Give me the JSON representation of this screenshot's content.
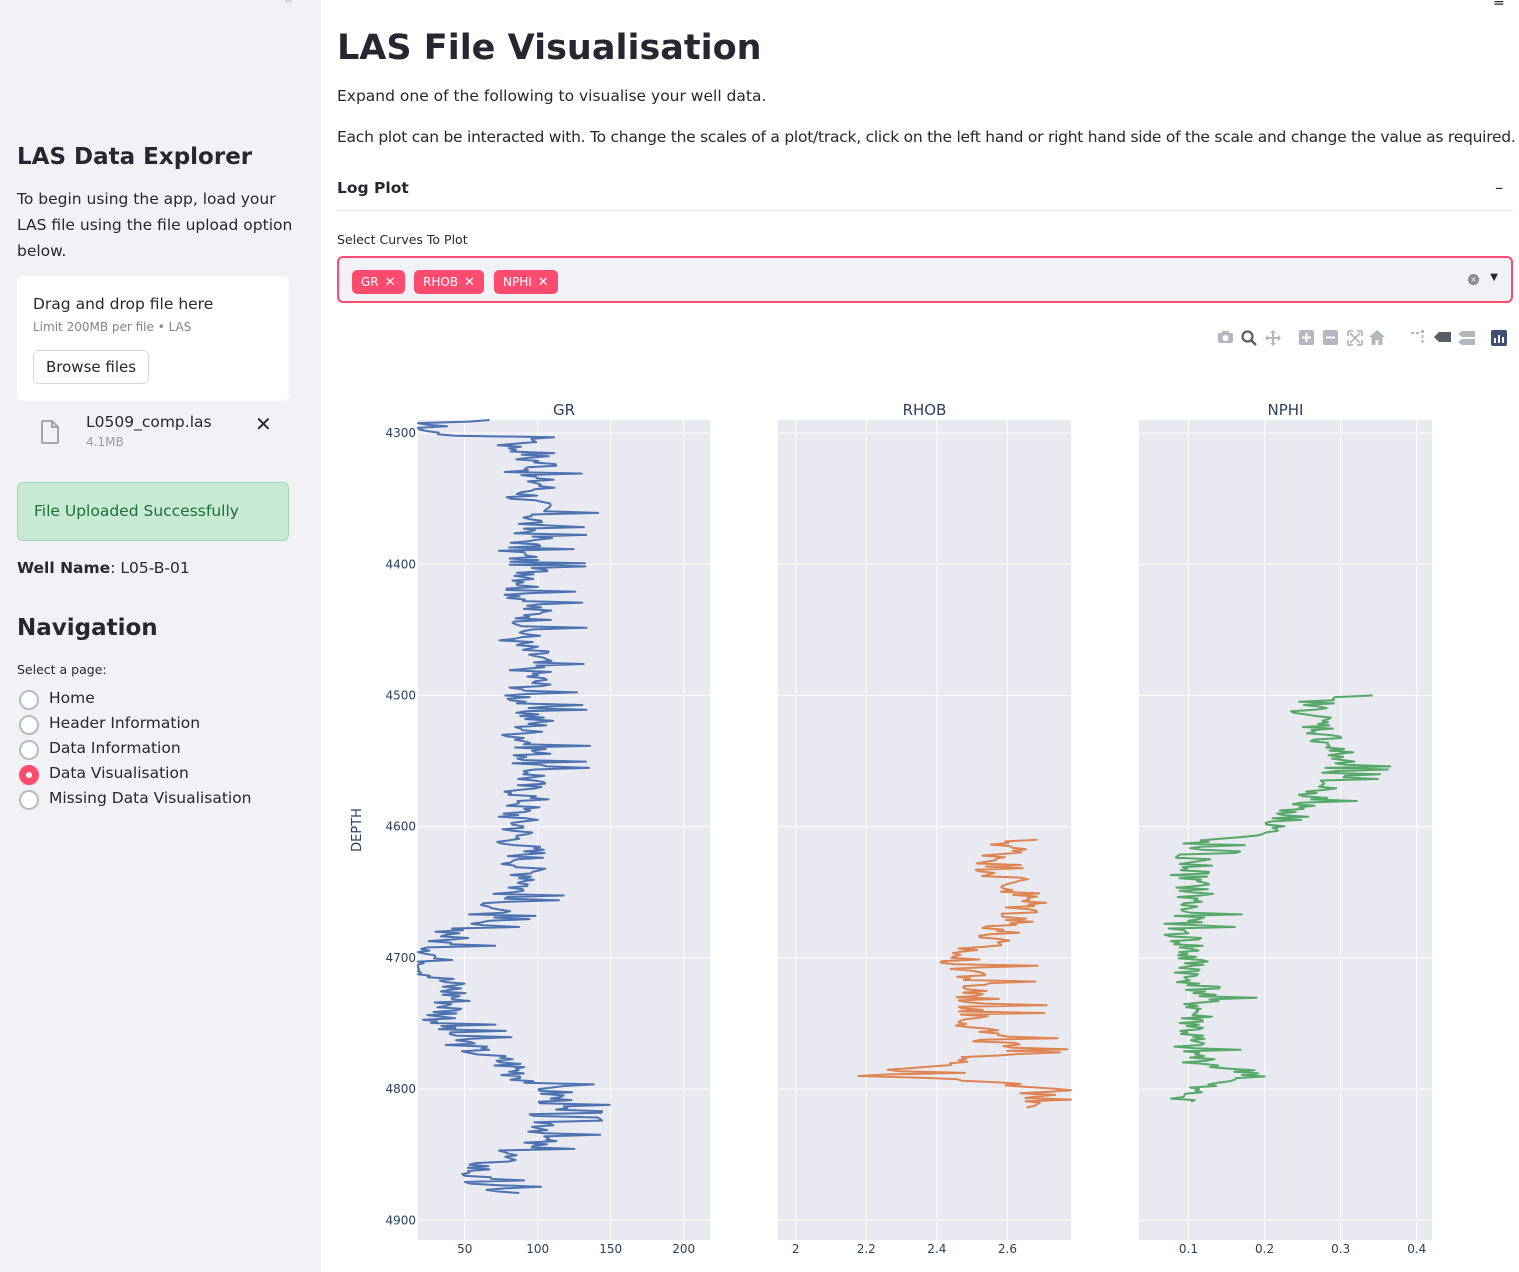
{
  "sidebar": {
    "close_icon": "«",
    "title": "LAS Data Explorer",
    "intro": "To begin using the app, load your LAS file using the file upload option below.",
    "uploader": {
      "drag_text": "Drag and drop file here",
      "limit_text": "Limit 200MB per file • LAS",
      "browse_label": "Browse files"
    },
    "file": {
      "name": "L0509_comp.las",
      "size": "4.1MB",
      "remove": "✕"
    },
    "success_message": "File Uploaded Successfully",
    "well_label": "Well Name",
    "well_value": ": L05-B-01",
    "nav_title": "Navigation",
    "nav_label": "Select a page:",
    "nav_items": [
      {
        "label": "Home",
        "checked": false
      },
      {
        "label": "Header Information",
        "checked": false
      },
      {
        "label": "Data Information",
        "checked": false
      },
      {
        "label": "Data Visualisation",
        "checked": true
      },
      {
        "label": "Missing Data Visualisation",
        "checked": false
      }
    ]
  },
  "main": {
    "menu_icon": "≡",
    "title": "LAS File Visualisation",
    "p1": "Expand one of the following to visualise your well data.",
    "p2": "Each plot can be interacted with. To change the scales of a plot/track, click on the left hand or right hand side of the scale and change the value as required.",
    "expander_title": "Log Plot",
    "expander_toggle": "–",
    "multiselect_label": "Select Curves To Plot",
    "selected_curves": [
      "GR",
      "RHOB",
      "NPHI"
    ],
    "remove_glyph": "✕",
    "clear_glyph": "×",
    "caret_glyph": "▼"
  },
  "modebar_icons": [
    "camera-icon",
    "zoom-icon",
    "pan-icon",
    "zoom-in-icon",
    "zoom-out-icon",
    "autoscale-icon",
    "reset-axes-icon",
    "spike-lines-icon",
    "hover-closest-icon",
    "hover-compare-icon",
    "plotly-logo-icon"
  ],
  "chart_data": {
    "type": "line",
    "y_label": "DEPTH",
    "y_range": [
      4290,
      4915
    ],
    "y_reversed": true,
    "y_ticks": [
      4300,
      4400,
      4500,
      4600,
      4700,
      4800,
      4900
    ],
    "background": "#e9e9f1",
    "grid": true,
    "tracks": [
      {
        "name": "GR",
        "color": "#4c72b0",
        "x_range": [
          18,
          218
        ],
        "x_ticks": [
          50,
          100,
          150,
          200
        ],
        "depth_start": 4290,
        "depth_end": 4880,
        "points": [
          [
            4290,
            55
          ],
          [
            4292,
            30
          ],
          [
            4295,
            25
          ],
          [
            4298,
            22
          ],
          [
            4300,
            30
          ],
          [
            4302,
            55
          ],
          [
            4305,
            110
          ],
          [
            4310,
            80
          ],
          [
            4315,
            100
          ],
          [
            4320,
            95
          ],
          [
            4325,
            110
          ],
          [
            4330,
            90
          ],
          [
            4340,
            105
          ],
          [
            4350,
            90
          ],
          [
            4360,
            105
          ],
          [
            4370,
            95
          ],
          [
            4380,
            100
          ],
          [
            4390,
            85
          ],
          [
            4400,
            95
          ],
          [
            4410,
            100
          ],
          [
            4420,
            90
          ],
          [
            4430,
            95
          ],
          [
            4440,
            100
          ],
          [
            4450,
            95
          ],
          [
            4460,
            85
          ],
          [
            4470,
            100
          ],
          [
            4480,
            95
          ],
          [
            4490,
            100
          ],
          [
            4500,
            90
          ],
          [
            4510,
            95
          ],
          [
            4520,
            100
          ],
          [
            4530,
            90
          ],
          [
            4540,
            100
          ],
          [
            4550,
            95
          ],
          [
            4560,
            100
          ],
          [
            4570,
            90
          ],
          [
            4580,
            95
          ],
          [
            4590,
            85
          ],
          [
            4600,
            90
          ],
          [
            4610,
            85
          ],
          [
            4620,
            95
          ],
          [
            4630,
            90
          ],
          [
            4640,
            100
          ],
          [
            4650,
            85
          ],
          [
            4660,
            75
          ],
          [
            4670,
            60
          ],
          [
            4680,
            45
          ],
          [
            4690,
            35
          ],
          [
            4700,
            30
          ],
          [
            4710,
            25
          ],
          [
            4720,
            40
          ],
          [
            4730,
            45
          ],
          [
            4740,
            40
          ],
          [
            4750,
            35
          ],
          [
            4760,
            45
          ],
          [
            4770,
            55
          ],
          [
            4780,
            80
          ],
          [
            4790,
            90
          ],
          [
            4800,
            110
          ],
          [
            4810,
            115
          ],
          [
            4820,
            105
          ],
          [
            4830,
            110
          ],
          [
            4840,
            100
          ],
          [
            4850,
            80
          ],
          [
            4860,
            60
          ],
          [
            4870,
            55
          ],
          [
            4880,
            85
          ]
        ],
        "noise": 28
      },
      {
        "name": "RHOB",
        "color": "#dd8452",
        "x_range": [
          1.95,
          2.78
        ],
        "x_ticks": [
          2,
          2.2,
          2.4,
          2.6
        ],
        "depth_start": 4610,
        "depth_end": 4815,
        "points": [
          [
            4610,
            2.62
          ],
          [
            4620,
            2.6
          ],
          [
            4630,
            2.58
          ],
          [
            4640,
            2.6
          ],
          [
            4650,
            2.63
          ],
          [
            4660,
            2.66
          ],
          [
            4670,
            2.64
          ],
          [
            4680,
            2.58
          ],
          [
            4690,
            2.52
          ],
          [
            4700,
            2.45
          ],
          [
            4710,
            2.52
          ],
          [
            4720,
            2.5
          ],
          [
            4730,
            2.52
          ],
          [
            4740,
            2.53
          ],
          [
            4750,
            2.52
          ],
          [
            4760,
            2.55
          ],
          [
            4770,
            2.6
          ],
          [
            4780,
            2.5
          ],
          [
            4785,
            2.32
          ],
          [
            4790,
            2.25
          ],
          [
            4795,
            2.55
          ],
          [
            4800,
            2.7
          ],
          [
            4810,
            2.72
          ],
          [
            4815,
            2.7
          ]
        ],
        "noise": 0.14
      },
      {
        "name": "NPHI",
        "color": "#55a868",
        "x_range": [
          0.035,
          0.42
        ],
        "x_ticks": [
          0.1,
          0.2,
          0.3,
          0.4
        ],
        "depth_start": 4500,
        "depth_end": 4810,
        "points": [
          [
            4500,
            0.28
          ],
          [
            4510,
            0.26
          ],
          [
            4520,
            0.27
          ],
          [
            4530,
            0.28
          ],
          [
            4540,
            0.29
          ],
          [
            4550,
            0.3
          ],
          [
            4560,
            0.29
          ],
          [
            4570,
            0.28
          ],
          [
            4580,
            0.26
          ],
          [
            4590,
            0.24
          ],
          [
            4600,
            0.22
          ],
          [
            4605,
            0.2
          ],
          [
            4610,
            0.12
          ],
          [
            4620,
            0.1
          ],
          [
            4630,
            0.11
          ],
          [
            4640,
            0.1
          ],
          [
            4650,
            0.11
          ],
          [
            4660,
            0.1
          ],
          [
            4670,
            0.1
          ],
          [
            4680,
            0.09
          ],
          [
            4690,
            0.1
          ],
          [
            4700,
            0.1
          ],
          [
            4710,
            0.11
          ],
          [
            4715,
            0.09
          ],
          [
            4720,
            0.12
          ],
          [
            4730,
            0.12
          ],
          [
            4740,
            0.11
          ],
          [
            4750,
            0.11
          ],
          [
            4760,
            0.1
          ],
          [
            4770,
            0.1
          ],
          [
            4780,
            0.12
          ],
          [
            4790,
            0.2
          ],
          [
            4795,
            0.13
          ],
          [
            4800,
            0.1
          ],
          [
            4805,
            0.1
          ],
          [
            4810,
            0.11
          ]
        ],
        "noise": 0.05
      }
    ]
  }
}
